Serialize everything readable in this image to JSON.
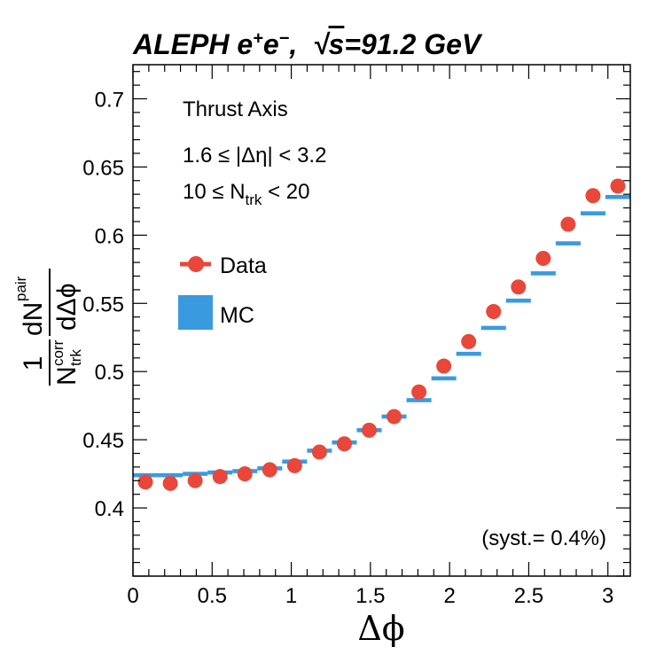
{
  "header": {
    "title_prefix": "ALEPH e",
    "title_sup_plus": "+",
    "title_e2": "e",
    "title_sup_minus": "−",
    "title_sep": ",",
    "title_sqrt_symbol": "√",
    "title_s": "s",
    "title_suffix": "=91.2 GeV"
  },
  "annotations": {
    "axis_text": "Thrust Axis",
    "deta_cut": "1.6 ≤ |Δη| < 3.2",
    "ntrk_cut_prefix": "10 ≤ N",
    "ntrk_cut_sub": "trk",
    "ntrk_cut_suffix": " < 20",
    "syst": "(syst.= 0.4%)"
  },
  "legend": {
    "data_label": "Data",
    "mc_label": "MC"
  },
  "axes": {
    "xlabel": "Δϕ",
    "ylabel_one": "1",
    "ylabel_N": "N",
    "ylabel_corr": "corr",
    "ylabel_trk": "trk",
    "ylabel_dN": "dN",
    "ylabel_pair": "pair",
    "ylabel_dphi": "dΔϕ"
  },
  "colors": {
    "data": "#e8473a",
    "mc": "#3a9ae0"
  },
  "chart_data": {
    "type": "scatter",
    "title": "ALEPH e+e−, √s=91.2 GeV",
    "xlabel": "Δϕ",
    "ylabel": "1/N_trk^corr dN^pair/dΔϕ",
    "xlim": [
      0,
      3.1416
    ],
    "ylim": [
      0.35,
      0.725
    ],
    "x_ticks": [
      0,
      0.5,
      1,
      1.5,
      2,
      2.5,
      3
    ],
    "x_tick_labels": [
      "0",
      "0.5",
      "1",
      "1.5",
      "2",
      "2.5",
      "3"
    ],
    "y_ticks": [
      0.4,
      0.45,
      0.5,
      0.55,
      0.6,
      0.65,
      0.7
    ],
    "y_tick_labels": [
      "0.4",
      "0.45",
      "0.5",
      "0.55",
      "0.6",
      "0.65",
      "0.7"
    ],
    "bin_width": 0.15708,
    "x": [
      0.0785,
      0.2356,
      0.3927,
      0.5498,
      0.7069,
      0.864,
      1.021,
      1.1781,
      1.3352,
      1.4923,
      1.6493,
      1.8064,
      1.9635,
      2.1206,
      2.2777,
      2.4347,
      2.5918,
      2.7489,
      2.906,
      3.0631
    ],
    "series": [
      {
        "name": "Data",
        "style": "markers",
        "values": [
          0.419,
          0.418,
          0.42,
          0.423,
          0.425,
          0.428,
          0.431,
          0.441,
          0.447,
          0.457,
          0.467,
          0.485,
          0.504,
          0.522,
          0.544,
          0.562,
          0.583,
          0.608,
          0.629,
          0.636
        ]
      },
      {
        "name": "MC",
        "style": "bands",
        "values": [
          0.424,
          0.424,
          0.425,
          0.426,
          0.427,
          0.429,
          0.434,
          0.442,
          0.448,
          0.457,
          0.467,
          0.479,
          0.495,
          0.513,
          0.532,
          0.552,
          0.572,
          0.594,
          0.616,
          0.628
        ]
      }
    ],
    "legend_position": "left"
  }
}
